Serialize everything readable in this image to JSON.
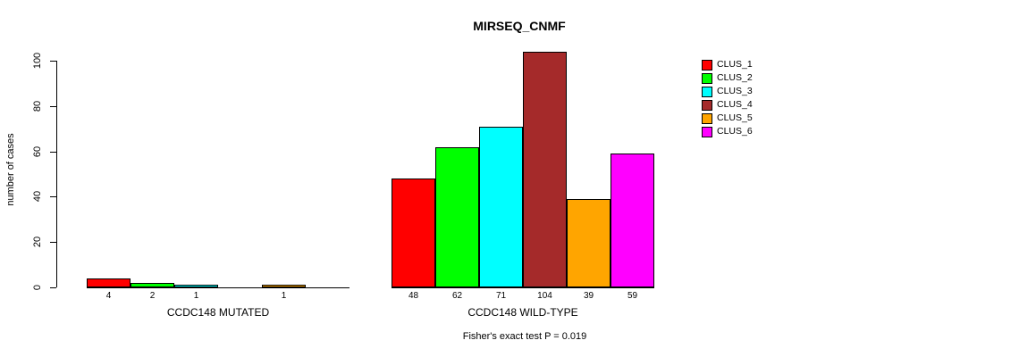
{
  "chart_data": {
    "type": "bar",
    "title": "MIRSEQ_CNMF",
    "ylabel": "number of cases",
    "xlabel": "",
    "ylim": [
      0,
      100
    ],
    "y_ticks": [
      0,
      20,
      40,
      60,
      80,
      100
    ],
    "grid": false,
    "legend_position": "right",
    "series": [
      "CLUS_1",
      "CLUS_2",
      "CLUS_3",
      "CLUS_4",
      "CLUS_5",
      "CLUS_6"
    ],
    "colors": [
      "#ff0000",
      "#00ff00",
      "#00ffff",
      "#a52a2a",
      "#ffa500",
      "#ff00ff"
    ],
    "groups": [
      {
        "label": "CCDC148 MUTATED",
        "values": [
          4,
          2,
          1,
          0,
          1,
          0
        ],
        "bar_labels": [
          "4",
          "2",
          "1",
          "",
          "1",
          ""
        ]
      },
      {
        "label": "CCDC148 WILD-TYPE",
        "values": [
          48,
          62,
          71,
          104,
          39,
          59
        ],
        "bar_labels": [
          "48",
          "62",
          "71",
          "104",
          "39",
          "59"
        ]
      }
    ],
    "annotation": "Fisher's exact test P = 0.019"
  }
}
